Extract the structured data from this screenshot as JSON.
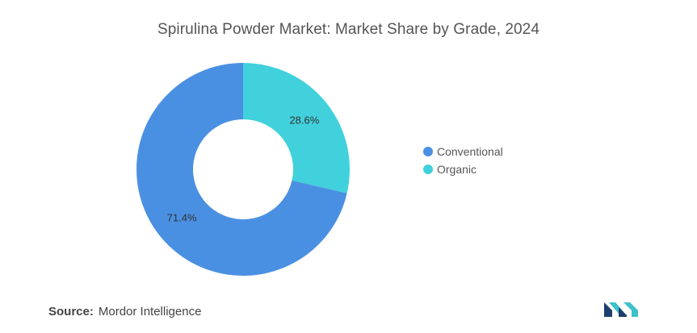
{
  "chart_data": {
    "type": "pie",
    "donut": true,
    "title": "Spirulina Powder Market: Market Share by Grade, 2024",
    "categories": [
      "Conventional",
      "Organic"
    ],
    "values": [
      71.4,
      28.6
    ],
    "data_labels": [
      "71.4%",
      "28.6%"
    ],
    "colors": [
      "#4a90e2",
      "#41d1dc"
    ],
    "legend_position": "right"
  },
  "source": {
    "label": "Source:",
    "text": "Mordor Intelligence"
  },
  "logo": {
    "icon": "mordor-intelligence-logo-icon",
    "colors": [
      "#1d3f6e",
      "#3fc1c9"
    ]
  }
}
